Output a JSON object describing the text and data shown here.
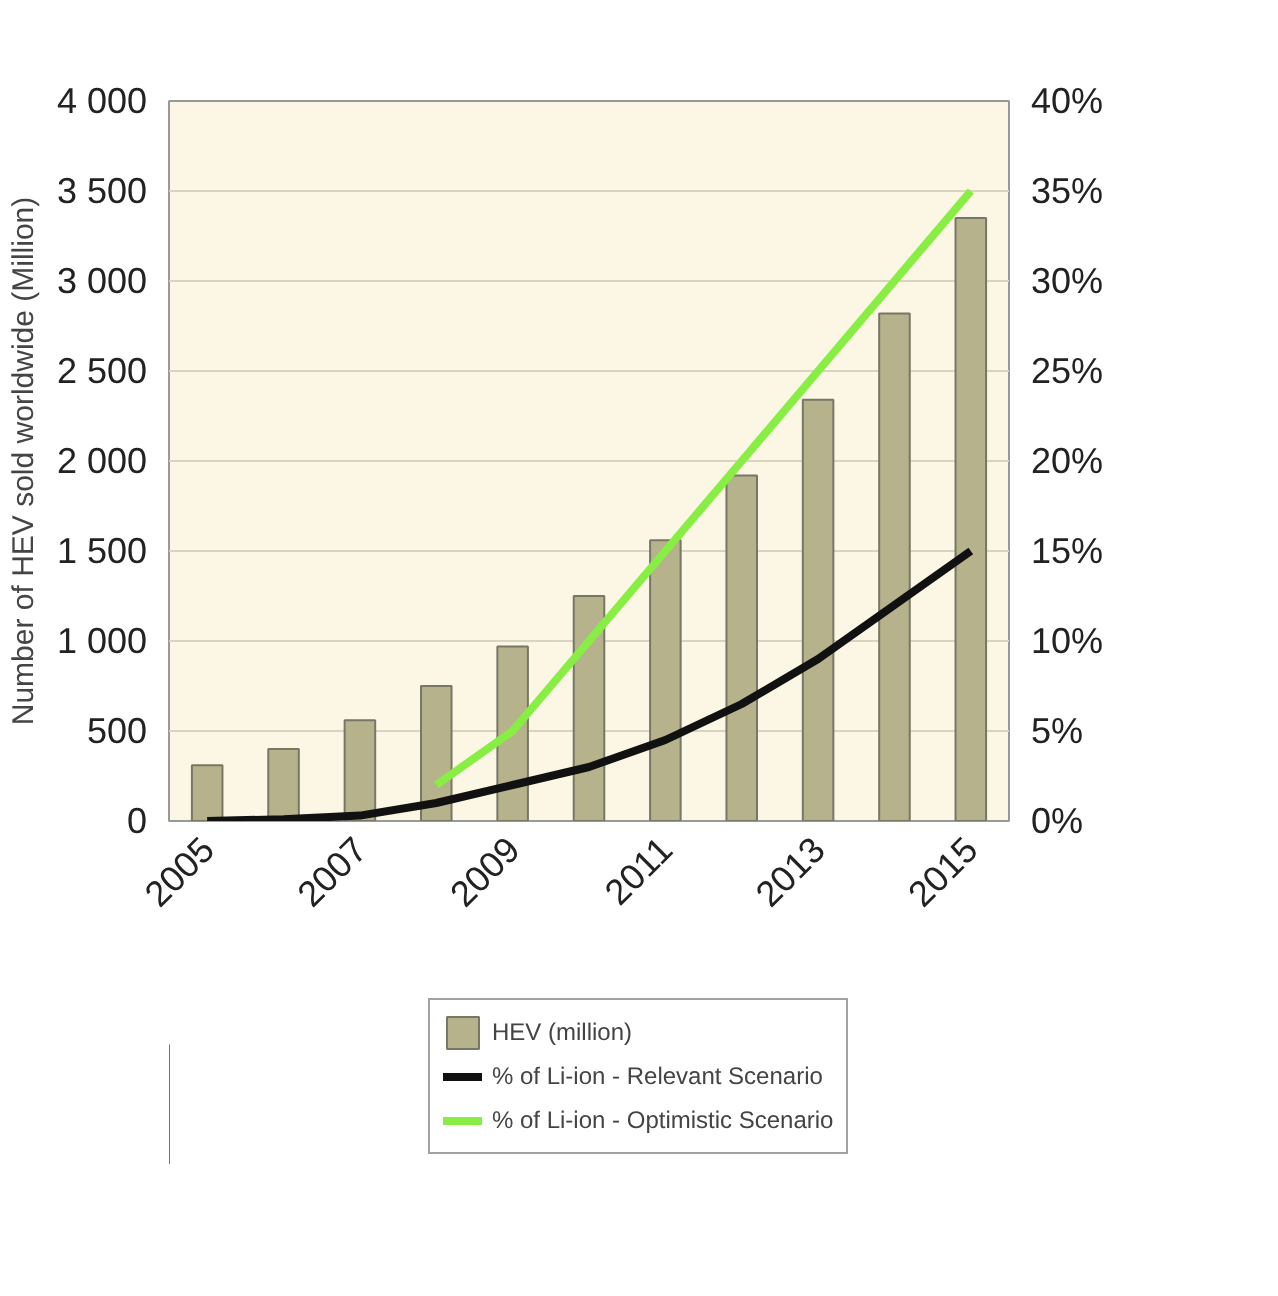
{
  "chart_data": {
    "type": "bar",
    "ylabel": "Number of HEV sold worldwide (Million)",
    "categories": [
      "2005",
      null,
      "2007",
      null,
      "2009",
      null,
      "2011",
      null,
      "2013",
      null,
      "2015"
    ],
    "series": [
      {
        "name": "HEV (million)",
        "color": "#b5b28c",
        "values": [
          310,
          400,
          560,
          750,
          970,
          1250,
          1560,
          1920,
          2340,
          2820,
          3350
        ]
      },
      {
        "name": "% of Li-ion - Relevant Scenario",
        "type": "line",
        "axis": "y2",
        "color": "#111111",
        "values": [
          0,
          0.1,
          0.3,
          1,
          2,
          3,
          4.5,
          6.5,
          9,
          12,
          15
        ]
      },
      {
        "name": "% of Li-ion - Optimistic Scenario",
        "type": "line",
        "axis": "y2",
        "color": "#88ee44",
        "values": [
          null,
          null,
          null,
          2,
          5,
          10,
          15,
          20,
          25,
          30,
          35
        ]
      }
    ],
    "ylim": [
      0,
      4000
    ],
    "yticks": [
      0,
      500,
      {
        "value": 1000,
        "label": "1 000"
      },
      {
        "value": 1500,
        "label": "1 500"
      },
      {
        "value": 2000,
        "label": "2 000"
      },
      {
        "value": 2500,
        "label": "2 500"
      },
      {
        "value": 3000,
        "label": "3 000"
      },
      {
        "value": 3500,
        "label": "3 500"
      },
      {
        "value": 4000,
        "label": "4 000"
      }
    ],
    "y2lim": [
      0,
      40
    ],
    "y2ticks": [
      {
        "value": 0,
        "label": "0%"
      },
      {
        "value": 5,
        "label": "5%"
      },
      {
        "value": 10,
        "label": "10%"
      },
      {
        "value": 15,
        "label": "15%"
      },
      {
        "value": 20,
        "label": "20%"
      },
      {
        "value": 25,
        "label": "25%"
      },
      {
        "value": 30,
        "label": "30%"
      },
      {
        "value": 35,
        "label": "35%"
      },
      {
        "value": 40,
        "label": "40%"
      }
    ],
    "grid": "y",
    "legend": "bottom"
  }
}
